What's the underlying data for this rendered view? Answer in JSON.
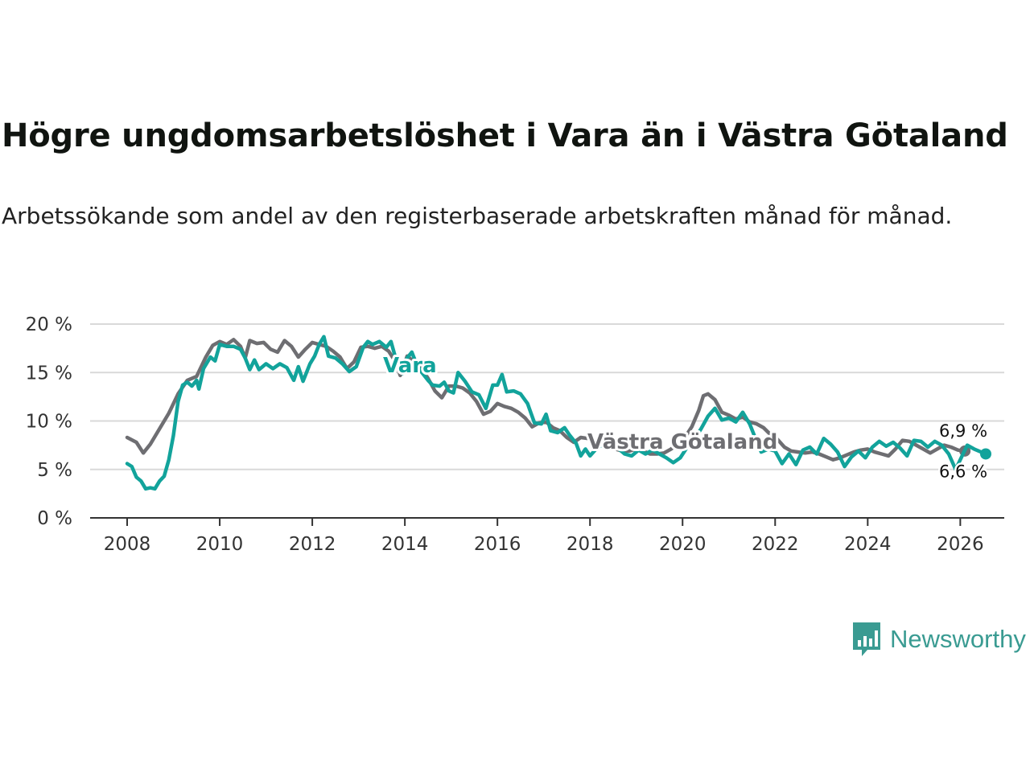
{
  "title": "Högre ungdomsarbetslöshet i Vara än i Västra Götaland",
  "subtitle": "Arbetssökande som andel av den registerbaserade arbetskraften månad för månad.",
  "brand": {
    "name": "Newsworthy",
    "icon": "bar-chart-speech-bubble-icon",
    "color": "#3a9b92"
  },
  "chart_data": {
    "type": "line",
    "ylim": [
      0,
      20
    ],
    "yticks": [
      {
        "value": 0,
        "label": "0 %"
      },
      {
        "value": 5,
        "label": "5 %"
      },
      {
        "value": 10,
        "label": "10 %"
      },
      {
        "value": 15,
        "label": "15 %"
      },
      {
        "value": 20,
        "label": "20 %"
      }
    ],
    "xlim": [
      2007.2,
      2026.95
    ],
    "xticks": [
      {
        "value": 2008,
        "label": "2008"
      },
      {
        "value": 2010,
        "label": "2010"
      },
      {
        "value": 2012,
        "label": "2012"
      },
      {
        "value": 2014,
        "label": "2014"
      },
      {
        "value": 2016,
        "label": "2016"
      },
      {
        "value": 2018,
        "label": "2018"
      },
      {
        "value": 2020,
        "label": "2020"
      },
      {
        "value": 2022,
        "label": "2022"
      },
      {
        "value": 2024,
        "label": "2024"
      },
      {
        "value": 2026,
        "label": "2026"
      }
    ],
    "series": [
      {
        "name": "Västra Götaland",
        "color": "#6e6e72",
        "end_label": "6,9 %",
        "points": [
          [
            2008.0,
            8.3
          ],
          [
            2008.2,
            7.8
          ],
          [
            2008.35,
            6.7
          ],
          [
            2008.5,
            7.6
          ],
          [
            2008.7,
            9.2
          ],
          [
            2008.9,
            10.8
          ],
          [
            2009.1,
            12.8
          ],
          [
            2009.3,
            14.2
          ],
          [
            2009.5,
            14.6
          ],
          [
            2009.7,
            16.6
          ],
          [
            2009.85,
            17.8
          ],
          [
            2010.0,
            18.2
          ],
          [
            2010.15,
            17.9
          ],
          [
            2010.3,
            18.4
          ],
          [
            2010.45,
            17.7
          ],
          [
            2010.55,
            16.5
          ],
          [
            2010.65,
            18.3
          ],
          [
            2010.8,
            18.0
          ],
          [
            2010.95,
            18.1
          ],
          [
            2011.1,
            17.4
          ],
          [
            2011.25,
            17.1
          ],
          [
            2011.4,
            18.3
          ],
          [
            2011.55,
            17.7
          ],
          [
            2011.7,
            16.6
          ],
          [
            2011.85,
            17.4
          ],
          [
            2012.0,
            18.1
          ],
          [
            2012.15,
            17.9
          ],
          [
            2012.3,
            17.7
          ],
          [
            2012.45,
            17.2
          ],
          [
            2012.6,
            16.6
          ],
          [
            2012.75,
            15.4
          ],
          [
            2012.9,
            16.1
          ],
          [
            2013.05,
            17.6
          ],
          [
            2013.2,
            17.7
          ],
          [
            2013.35,
            17.5
          ],
          [
            2013.5,
            17.7
          ],
          [
            2013.65,
            17.2
          ],
          [
            2013.8,
            16.1
          ],
          [
            2013.9,
            14.7
          ],
          [
            2014.05,
            16.7
          ],
          [
            2014.2,
            16.1
          ],
          [
            2014.35,
            15.5
          ],
          [
            2014.5,
            14.4
          ],
          [
            2014.65,
            13.1
          ],
          [
            2014.8,
            12.4
          ],
          [
            2014.95,
            13.6
          ],
          [
            2015.1,
            13.6
          ],
          [
            2015.25,
            13.4
          ],
          [
            2015.4,
            12.9
          ],
          [
            2015.55,
            12.0
          ],
          [
            2015.7,
            10.7
          ],
          [
            2015.85,
            11.0
          ],
          [
            2016.0,
            11.8
          ],
          [
            2016.15,
            11.5
          ],
          [
            2016.3,
            11.3
          ],
          [
            2016.45,
            10.9
          ],
          [
            2016.6,
            10.3
          ],
          [
            2016.75,
            9.4
          ],
          [
            2016.9,
            9.8
          ],
          [
            2017.05,
            9.9
          ],
          [
            2017.2,
            9.3
          ],
          [
            2017.35,
            9.0
          ],
          [
            2017.5,
            8.3
          ],
          [
            2017.65,
            7.8
          ],
          [
            2017.8,
            8.3
          ],
          [
            2017.95,
            8.2
          ],
          [
            2018.1,
            7.9
          ],
          [
            2018.25,
            7.6
          ],
          [
            2018.4,
            7.3
          ],
          [
            2018.55,
            7.1
          ],
          [
            2018.7,
            6.9
          ],
          [
            2018.85,
            6.9
          ],
          [
            2019.0,
            7.1
          ],
          [
            2019.15,
            6.9
          ],
          [
            2019.3,
            6.6
          ],
          [
            2019.45,
            6.6
          ],
          [
            2019.6,
            6.7
          ],
          [
            2019.75,
            7.1
          ],
          [
            2019.9,
            7.6
          ],
          [
            2020.05,
            8.3
          ],
          [
            2020.2,
            9.4
          ],
          [
            2020.35,
            11.1
          ],
          [
            2020.45,
            12.6
          ],
          [
            2020.55,
            12.8
          ],
          [
            2020.7,
            12.2
          ],
          [
            2020.85,
            10.9
          ],
          [
            2021.0,
            10.6
          ],
          [
            2021.15,
            10.2
          ],
          [
            2021.3,
            10.4
          ],
          [
            2021.45,
            9.9
          ],
          [
            2021.6,
            9.7
          ],
          [
            2021.75,
            9.3
          ],
          [
            2021.9,
            8.6
          ],
          [
            2022.05,
            8.1
          ],
          [
            2022.2,
            7.3
          ],
          [
            2022.35,
            6.9
          ],
          [
            2022.5,
            6.8
          ],
          [
            2022.65,
            6.7
          ],
          [
            2022.8,
            6.8
          ],
          [
            2022.95,
            6.6
          ],
          [
            2023.1,
            6.3
          ],
          [
            2023.25,
            6.0
          ],
          [
            2023.4,
            6.2
          ],
          [
            2023.55,
            6.5
          ],
          [
            2023.7,
            6.8
          ],
          [
            2023.85,
            7.0
          ],
          [
            2024.0,
            7.1
          ],
          [
            2024.15,
            6.8
          ],
          [
            2024.3,
            6.6
          ],
          [
            2024.45,
            6.4
          ],
          [
            2024.6,
            7.1
          ],
          [
            2024.75,
            8.0
          ],
          [
            2024.9,
            7.9
          ],
          [
            2025.05,
            7.5
          ],
          [
            2025.2,
            7.1
          ],
          [
            2025.35,
            6.7
          ],
          [
            2025.5,
            7.1
          ],
          [
            2025.65,
            7.5
          ],
          [
            2025.8,
            7.3
          ],
          [
            2025.95,
            7.0
          ],
          [
            2026.1,
            6.9
          ]
        ]
      },
      {
        "name": "Vara",
        "color": "#12a39b",
        "end_label": "6,6 %",
        "points": [
          [
            2008.0,
            5.6
          ],
          [
            2008.1,
            5.3
          ],
          [
            2008.2,
            4.2
          ],
          [
            2008.3,
            3.8
          ],
          [
            2008.4,
            3.0
          ],
          [
            2008.5,
            3.1
          ],
          [
            2008.6,
            3.0
          ],
          [
            2008.7,
            3.8
          ],
          [
            2008.8,
            4.3
          ],
          [
            2008.9,
            6.0
          ],
          [
            2009.0,
            8.5
          ],
          [
            2009.1,
            12.0
          ],
          [
            2009.2,
            13.7
          ],
          [
            2009.3,
            14.0
          ],
          [
            2009.4,
            13.6
          ],
          [
            2009.5,
            14.2
          ],
          [
            2009.55,
            13.3
          ],
          [
            2009.65,
            15.4
          ],
          [
            2009.8,
            16.6
          ],
          [
            2009.9,
            16.2
          ],
          [
            2010.0,
            17.9
          ],
          [
            2010.15,
            17.7
          ],
          [
            2010.3,
            17.7
          ],
          [
            2010.45,
            17.4
          ],
          [
            2010.55,
            16.5
          ],
          [
            2010.65,
            15.3
          ],
          [
            2010.75,
            16.3
          ],
          [
            2010.85,
            15.3
          ],
          [
            2011.0,
            15.9
          ],
          [
            2011.15,
            15.4
          ],
          [
            2011.3,
            15.9
          ],
          [
            2011.45,
            15.5
          ],
          [
            2011.6,
            14.2
          ],
          [
            2011.7,
            15.6
          ],
          [
            2011.8,
            14.1
          ],
          [
            2011.95,
            15.9
          ],
          [
            2012.05,
            16.7
          ],
          [
            2012.15,
            17.9
          ],
          [
            2012.25,
            18.7
          ],
          [
            2012.35,
            16.7
          ],
          [
            2012.5,
            16.5
          ],
          [
            2012.65,
            15.9
          ],
          [
            2012.8,
            15.1
          ],
          [
            2012.95,
            15.6
          ],
          [
            2013.1,
            17.6
          ],
          [
            2013.2,
            18.2
          ],
          [
            2013.3,
            17.9
          ],
          [
            2013.45,
            18.2
          ],
          [
            2013.6,
            17.6
          ],
          [
            2013.7,
            18.2
          ],
          [
            2013.8,
            16.5
          ],
          [
            2013.95,
            14.9
          ],
          [
            2014.05,
            16.5
          ],
          [
            2014.15,
            17.1
          ],
          [
            2014.25,
            15.9
          ],
          [
            2014.35,
            15.1
          ],
          [
            2014.5,
            14.2
          ],
          [
            2014.6,
            13.7
          ],
          [
            2014.75,
            13.6
          ],
          [
            2014.85,
            14.0
          ],
          [
            2014.95,
            13.1
          ],
          [
            2015.05,
            12.9
          ],
          [
            2015.15,
            15.0
          ],
          [
            2015.3,
            14.1
          ],
          [
            2015.45,
            13.0
          ],
          [
            2015.6,
            12.7
          ],
          [
            2015.75,
            11.3
          ],
          [
            2015.9,
            13.7
          ],
          [
            2016.0,
            13.7
          ],
          [
            2016.1,
            14.8
          ],
          [
            2016.2,
            13.0
          ],
          [
            2016.35,
            13.1
          ],
          [
            2016.5,
            12.8
          ],
          [
            2016.65,
            11.8
          ],
          [
            2016.8,
            9.8
          ],
          [
            2016.95,
            9.7
          ],
          [
            2017.05,
            10.7
          ],
          [
            2017.15,
            9.0
          ],
          [
            2017.3,
            8.8
          ],
          [
            2017.45,
            9.3
          ],
          [
            2017.55,
            8.6
          ],
          [
            2017.7,
            7.7
          ],
          [
            2017.8,
            6.4
          ],
          [
            2017.9,
            7.1
          ],
          [
            2018.0,
            6.4
          ],
          [
            2018.15,
            7.2
          ],
          [
            2018.3,
            7.6
          ],
          [
            2018.45,
            8.0
          ],
          [
            2018.6,
            7.2
          ],
          [
            2018.75,
            6.6
          ],
          [
            2018.9,
            6.4
          ],
          [
            2019.05,
            7.0
          ],
          [
            2019.2,
            6.6
          ],
          [
            2019.35,
            7.0
          ],
          [
            2019.5,
            6.6
          ],
          [
            2019.65,
            6.2
          ],
          [
            2019.8,
            5.7
          ],
          [
            2019.95,
            6.2
          ],
          [
            2020.1,
            7.3
          ],
          [
            2020.25,
            8.1
          ],
          [
            2020.4,
            9.2
          ],
          [
            2020.55,
            10.5
          ],
          [
            2020.7,
            11.3
          ],
          [
            2020.85,
            10.1
          ],
          [
            2021.0,
            10.3
          ],
          [
            2021.15,
            9.9
          ],
          [
            2021.3,
            10.9
          ],
          [
            2021.45,
            9.7
          ],
          [
            2021.6,
            7.9
          ],
          [
            2021.7,
            6.8
          ],
          [
            2021.85,
            7.1
          ],
          [
            2022.0,
            6.9
          ],
          [
            2022.15,
            5.6
          ],
          [
            2022.3,
            6.6
          ],
          [
            2022.45,
            5.5
          ],
          [
            2022.6,
            7.0
          ],
          [
            2022.75,
            7.3
          ],
          [
            2022.9,
            6.6
          ],
          [
            2023.05,
            8.2
          ],
          [
            2023.2,
            7.6
          ],
          [
            2023.35,
            6.8
          ],
          [
            2023.5,
            5.3
          ],
          [
            2023.65,
            6.3
          ],
          [
            2023.8,
            6.9
          ],
          [
            2023.95,
            6.2
          ],
          [
            2024.1,
            7.3
          ],
          [
            2024.25,
            7.9
          ],
          [
            2024.4,
            7.4
          ],
          [
            2024.55,
            7.8
          ],
          [
            2024.7,
            7.2
          ],
          [
            2024.85,
            6.4
          ],
          [
            2025.0,
            8.0
          ],
          [
            2025.15,
            7.9
          ],
          [
            2025.3,
            7.3
          ],
          [
            2025.45,
            7.9
          ],
          [
            2025.6,
            7.5
          ],
          [
            2025.75,
            6.6
          ],
          [
            2025.9,
            5.0
          ],
          [
            2026.05,
            6.5
          ],
          [
            2026.15,
            7.5
          ],
          [
            2026.3,
            7.1
          ],
          [
            2026.45,
            6.8
          ],
          [
            2026.55,
            6.6
          ]
        ]
      }
    ]
  }
}
